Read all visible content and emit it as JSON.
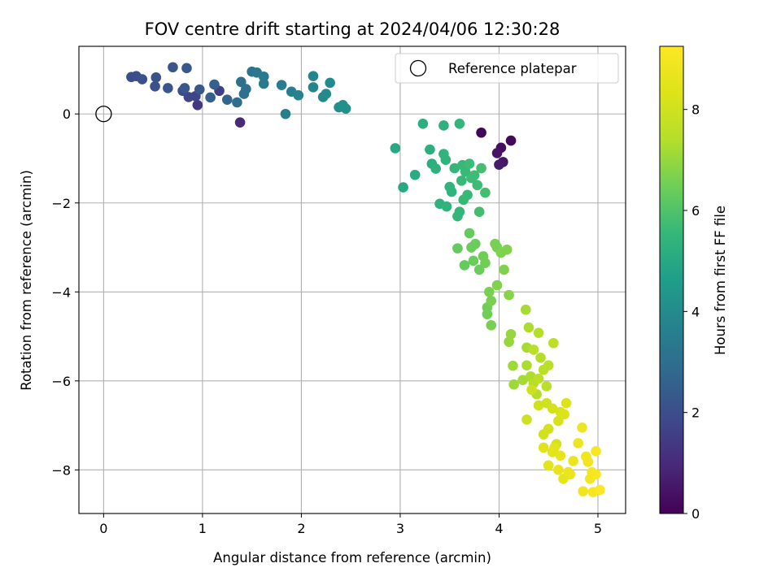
{
  "chart_data": {
    "type": "scatter",
    "title": "FOV centre drift starting at 2024/04/06 12:30:28",
    "xlabel": "Angular distance from reference (arcmin)",
    "ylabel": "Rotation from reference (arcmin)",
    "xlim": [
      -0.25,
      5.28
    ],
    "ylim": [
      -8.98,
      1.52
    ],
    "x_ticks": [
      0,
      1,
      2,
      3,
      4,
      5
    ],
    "y_ticks": [
      0,
      -2,
      -4,
      -6,
      -8
    ],
    "grid": true,
    "legend": {
      "location": "upper right",
      "entries": [
        "Reference platepar"
      ]
    },
    "reference_point": {
      "x": 0,
      "y": 0
    },
    "colorbar": {
      "label": "Hours from first FF file",
      "range": [
        0,
        9.25
      ],
      "ticks": [
        0,
        2,
        4,
        6,
        8
      ],
      "colormap": "viridis"
    },
    "series": [
      {
        "points": [
          [
            3.82,
            -0.42,
            0.1
          ],
          [
            4.12,
            -0.6,
            0.2
          ],
          [
            4.02,
            -0.76,
            0.3
          ],
          [
            3.98,
            -0.88,
            0.45
          ],
          [
            4.04,
            -1.08,
            0.5
          ],
          [
            4.0,
            -1.14,
            0.6
          ],
          [
            1.38,
            -0.19,
            1.0
          ],
          [
            0.95,
            0.2,
            1.4
          ],
          [
            1.17,
            0.52,
            1.6
          ],
          [
            0.93,
            0.4,
            1.7
          ],
          [
            0.86,
            0.38,
            1.8
          ],
          [
            0.8,
            0.52,
            1.9
          ],
          [
            0.28,
            0.83,
            2.0
          ],
          [
            0.33,
            0.85,
            2.0
          ],
          [
            0.39,
            0.78,
            2.1
          ],
          [
            0.52,
            0.62,
            2.1
          ],
          [
            0.53,
            0.82,
            2.1
          ],
          [
            0.65,
            0.58,
            2.2
          ],
          [
            0.7,
            1.05,
            2.2
          ],
          [
            0.84,
            1.03,
            2.3
          ],
          [
            0.82,
            0.58,
            2.3
          ],
          [
            0.97,
            0.55,
            2.3
          ],
          [
            1.08,
            0.37,
            2.5
          ],
          [
            1.12,
            0.66,
            2.5
          ],
          [
            1.25,
            0.32,
            2.7
          ],
          [
            1.35,
            0.26,
            2.9
          ],
          [
            1.39,
            0.72,
            3.0
          ],
          [
            1.42,
            0.45,
            3.1
          ],
          [
            1.44,
            0.56,
            3.1
          ],
          [
            1.5,
            0.95,
            3.2
          ],
          [
            1.55,
            0.93,
            3.3
          ],
          [
            1.62,
            0.84,
            3.4
          ],
          [
            1.62,
            0.68,
            3.4
          ],
          [
            1.8,
            0.65,
            3.5
          ],
          [
            1.84,
            0.0,
            3.6
          ],
          [
            1.9,
            0.5,
            3.6
          ],
          [
            1.97,
            0.42,
            3.7
          ],
          [
            2.12,
            0.6,
            3.8
          ],
          [
            2.12,
            0.85,
            3.8
          ],
          [
            2.22,
            0.38,
            3.9
          ],
          [
            2.25,
            0.45,
            4.0
          ],
          [
            2.29,
            0.7,
            4.0
          ],
          [
            2.38,
            0.15,
            4.1
          ],
          [
            2.42,
            0.2,
            4.2
          ],
          [
            2.45,
            0.12,
            4.2
          ],
          [
            2.95,
            -0.77,
            5.0
          ],
          [
            3.03,
            -1.65,
            5.0
          ],
          [
            3.15,
            -1.37,
            5.1
          ],
          [
            3.23,
            -0.22,
            5.2
          ],
          [
            3.3,
            -0.8,
            5.2
          ],
          [
            3.32,
            -1.12,
            5.2
          ],
          [
            3.36,
            -1.23,
            5.3
          ],
          [
            3.4,
            -2.02,
            5.3
          ],
          [
            3.44,
            -0.26,
            5.3
          ],
          [
            3.44,
            -0.9,
            5.4
          ],
          [
            3.46,
            -1.03,
            5.4
          ],
          [
            3.47,
            -2.08,
            5.4
          ],
          [
            3.5,
            -1.64,
            5.4
          ],
          [
            3.52,
            -1.75,
            5.4
          ],
          [
            3.55,
            -1.22,
            5.5
          ],
          [
            3.58,
            -2.3,
            5.5
          ],
          [
            3.6,
            -2.2,
            5.5
          ],
          [
            3.6,
            -0.22,
            5.5
          ],
          [
            3.62,
            -1.5,
            5.6
          ],
          [
            3.63,
            -1.15,
            5.6
          ],
          [
            3.64,
            -1.93,
            5.6
          ],
          [
            3.66,
            -1.3,
            5.6
          ],
          [
            3.68,
            -1.82,
            5.6
          ],
          [
            3.7,
            -1.12,
            5.7
          ],
          [
            3.72,
            -1.44,
            5.7
          ],
          [
            3.75,
            -1.38,
            5.7
          ],
          [
            3.78,
            -1.6,
            5.7
          ],
          [
            3.8,
            -2.2,
            5.8
          ],
          [
            3.82,
            -1.22,
            5.8
          ],
          [
            3.86,
            -1.77,
            5.8
          ],
          [
            3.58,
            -3.02,
            6.3
          ],
          [
            3.65,
            -3.4,
            6.3
          ],
          [
            3.7,
            -2.68,
            6.3
          ],
          [
            3.72,
            -3.0,
            6.4
          ],
          [
            3.74,
            -3.3,
            6.4
          ],
          [
            3.76,
            -2.92,
            6.4
          ],
          [
            3.8,
            -3.5,
            6.4
          ],
          [
            3.84,
            -3.2,
            6.5
          ],
          [
            3.86,
            -3.35,
            6.5
          ],
          [
            3.88,
            -4.35,
            6.5
          ],
          [
            3.88,
            -4.5,
            6.5
          ],
          [
            3.9,
            -4.0,
            6.6
          ],
          [
            3.92,
            -4.2,
            6.6
          ],
          [
            3.92,
            -4.75,
            6.6
          ],
          [
            3.96,
            -2.92,
            6.6
          ],
          [
            3.98,
            -3.0,
            6.6
          ],
          [
            3.98,
            -3.85,
            6.7
          ],
          [
            4.02,
            -3.12,
            6.7
          ],
          [
            4.05,
            -3.5,
            6.7
          ],
          [
            4.08,
            -3.05,
            6.7
          ],
          [
            4.1,
            -4.07,
            6.8
          ],
          [
            4.1,
            -5.12,
            7.0
          ],
          [
            4.12,
            -4.95,
            7.0
          ],
          [
            4.14,
            -5.66,
            7.1
          ],
          [
            4.15,
            -6.08,
            7.1
          ],
          [
            4.24,
            -5.98,
            7.2
          ],
          [
            4.27,
            -4.4,
            7.2
          ],
          [
            4.28,
            -5.25,
            7.2
          ],
          [
            4.28,
            -5.65,
            7.3
          ],
          [
            4.3,
            -4.8,
            7.3
          ],
          [
            4.32,
            -5.9,
            7.3
          ],
          [
            4.35,
            -6.05,
            7.4
          ],
          [
            4.38,
            -6.3,
            7.4
          ],
          [
            4.4,
            -4.92,
            7.4
          ],
          [
            4.42,
            -5.48,
            7.4
          ],
          [
            4.45,
            -5.75,
            7.5
          ],
          [
            4.48,
            -6.12,
            7.5
          ],
          [
            4.5,
            -5.65,
            7.5
          ],
          [
            4.55,
            -5.15,
            7.6
          ],
          [
            4.35,
            -5.3,
            7.5
          ],
          [
            4.4,
            -5.95,
            7.6
          ],
          [
            4.28,
            -6.87,
            7.9
          ],
          [
            4.33,
            -6.2,
            7.9
          ],
          [
            4.4,
            -6.55,
            8.0
          ],
          [
            4.45,
            -7.2,
            8.0
          ],
          [
            4.48,
            -6.5,
            8.0
          ],
          [
            4.5,
            -7.08,
            8.1
          ],
          [
            4.54,
            -6.62,
            8.1
          ],
          [
            4.58,
            -7.42,
            8.2
          ],
          [
            4.6,
            -6.9,
            8.2
          ],
          [
            4.62,
            -6.7,
            8.2
          ],
          [
            4.66,
            -6.75,
            8.3
          ],
          [
            4.68,
            -6.5,
            8.3
          ],
          [
            4.45,
            -7.5,
            8.4
          ],
          [
            4.5,
            -7.9,
            8.5
          ],
          [
            4.54,
            -7.6,
            8.5
          ],
          [
            4.56,
            -7.5,
            8.5
          ],
          [
            4.6,
            -8.0,
            8.6
          ],
          [
            4.62,
            -7.68,
            8.6
          ],
          [
            4.65,
            -8.2,
            8.6
          ],
          [
            4.7,
            -8.05,
            8.7
          ],
          [
            4.72,
            -8.1,
            8.7
          ],
          [
            4.75,
            -7.8,
            8.7
          ],
          [
            4.8,
            -7.4,
            8.8
          ],
          [
            4.84,
            -7.05,
            8.8
          ],
          [
            4.85,
            -8.48,
            8.9
          ],
          [
            4.88,
            -7.7,
            8.9
          ],
          [
            4.9,
            -7.82,
            8.9
          ],
          [
            4.92,
            -8.2,
            9.0
          ],
          [
            4.94,
            -8.05,
            9.0
          ],
          [
            4.95,
            -8.5,
            9.0
          ],
          [
            4.98,
            -7.58,
            9.1
          ],
          [
            4.98,
            -8.1,
            9.1
          ],
          [
            5.02,
            -8.45,
            9.2
          ]
        ]
      }
    ]
  }
}
